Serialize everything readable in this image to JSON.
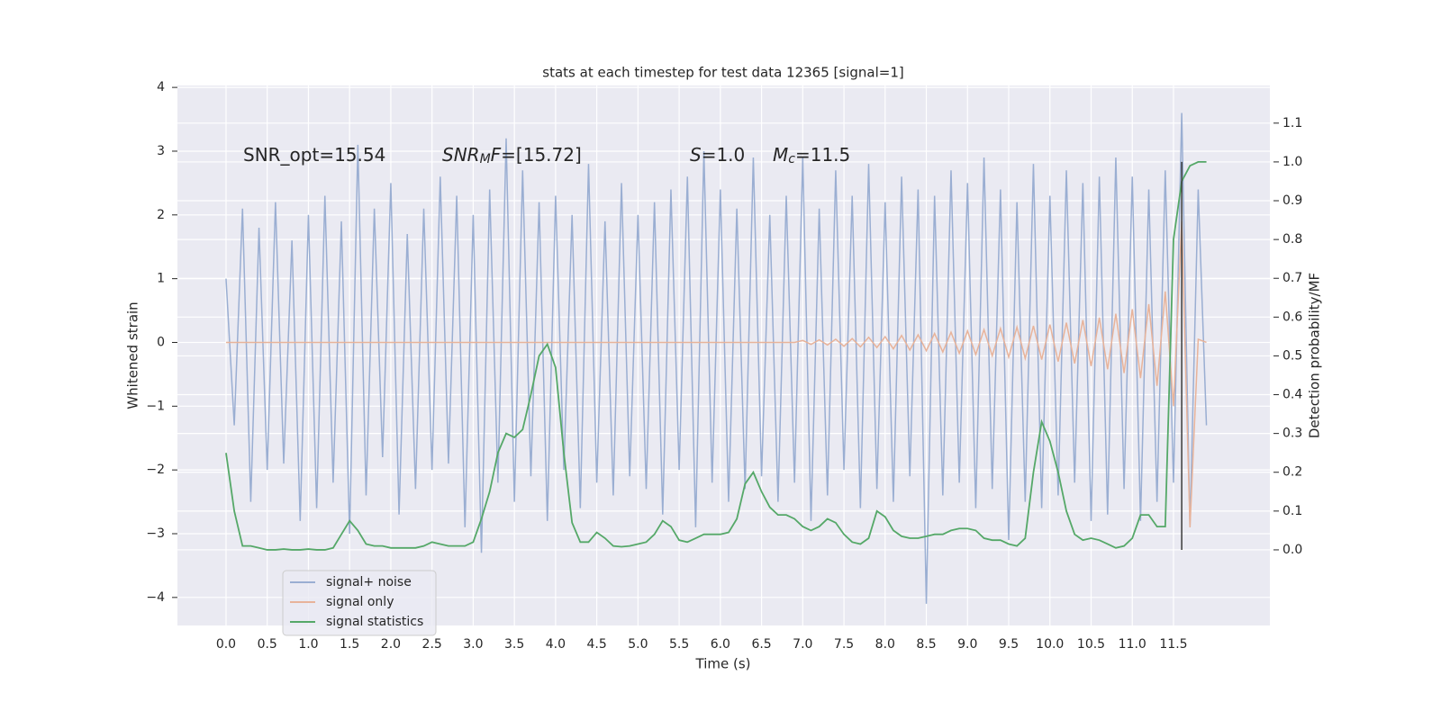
{
  "chart_data": {
    "type": "line",
    "title": "stats at each timestep for test data 12365 [signal=1]",
    "xlabel": "Time (s)",
    "ylabel": "Whitened strain",
    "y2label": "Detection probability/MF",
    "grid": true,
    "legend": "lower left",
    "xlim": [
      -0.59,
      12.67
    ],
    "ylim": [
      -4.44,
      4.03
    ],
    "y2lim": [
      -0.195,
      1.197
    ],
    "xticks": [
      {
        "value": 0,
        "label": "0.0"
      },
      0.5,
      {
        "value": 1,
        "label": "1.0"
      },
      1.5,
      {
        "value": 2,
        "label": "2.0"
      },
      2.5,
      {
        "value": 3,
        "label": "3.0"
      },
      3.5,
      {
        "value": 4,
        "label": "4.0"
      },
      4.5,
      {
        "value": 5,
        "label": "5.0"
      },
      5.5,
      {
        "value": 6,
        "label": "6.0"
      },
      6.5,
      {
        "value": 7,
        "label": "7.0"
      },
      7.5,
      {
        "value": 8,
        "label": "8.0"
      },
      8.5,
      {
        "value": 9,
        "label": "9.0"
      },
      9.5,
      {
        "value": 10,
        "label": "10.0"
      },
      10.5,
      {
        "value": 11,
        "label": "11.0"
      },
      11.5
    ],
    "yticks": [
      {
        "value": -4,
        "label": "−4"
      },
      {
        "value": -3,
        "label": "−3"
      },
      {
        "value": -2,
        "label": "−2"
      },
      {
        "value": -1,
        "label": "−1"
      },
      0,
      1,
      2,
      3,
      4
    ],
    "y2ticks": [
      {
        "value": 0,
        "label": "0.0"
      },
      0.1,
      0.2,
      0.3,
      0.4,
      0.5,
      0.6,
      0.7,
      0.8,
      0.9,
      {
        "value": 1,
        "label": "1.0"
      },
      1.1
    ],
    "x": [
      0.0,
      0.1,
      0.2,
      0.3,
      0.4,
      0.5,
      0.6,
      0.7,
      0.8,
      0.9,
      1.0,
      1.1,
      1.2,
      1.3,
      1.4,
      1.5,
      1.6,
      1.7,
      1.8,
      1.9,
      2.0,
      2.1,
      2.2,
      2.3,
      2.4,
      2.5,
      2.6,
      2.7,
      2.8,
      2.9,
      3.0,
      3.1,
      3.2,
      3.3,
      3.4,
      3.5,
      3.6,
      3.7,
      3.8,
      3.9,
      4.0,
      4.1,
      4.2,
      4.3,
      4.4,
      4.5,
      4.6,
      4.7,
      4.8,
      4.9,
      5.0,
      5.1,
      5.2,
      5.3,
      5.4,
      5.5,
      5.6,
      5.7,
      5.8,
      5.9,
      6.0,
      6.1,
      6.2,
      6.3,
      6.4,
      6.5,
      6.6,
      6.7,
      6.8,
      6.9,
      7.0,
      7.1,
      7.2,
      7.3,
      7.4,
      7.5,
      7.6,
      7.7,
      7.8,
      7.9,
      8.0,
      8.1,
      8.2,
      8.3,
      8.4,
      8.5,
      8.6,
      8.7,
      8.8,
      8.9,
      9.0,
      9.1,
      9.2,
      9.3,
      9.4,
      9.5,
      9.6,
      9.7,
      9.8,
      9.9,
      10.0,
      10.1,
      10.2,
      10.3,
      10.4,
      10.5,
      10.6,
      10.7,
      10.8,
      10.9,
      11.0,
      11.1,
      11.2,
      11.3,
      11.4,
      11.5,
      11.6,
      11.7,
      11.8,
      11.9
    ],
    "series": [
      {
        "name": "signal+ noise",
        "color": "#9aaed2",
        "values": [
          1.0,
          -1.3,
          2.1,
          -2.5,
          1.8,
          -2.0,
          2.2,
          -1.9,
          1.6,
          -2.8,
          2.0,
          -2.6,
          2.3,
          -2.2,
          1.9,
          -3.0,
          3.1,
          -2.4,
          2.1,
          -1.8,
          2.5,
          -2.7,
          1.7,
          -2.3,
          2.1,
          -2.0,
          2.6,
          -1.9,
          2.3,
          -2.9,
          2.0,
          -3.3,
          2.4,
          -2.2,
          3.2,
          -2.5,
          2.7,
          -2.1,
          2.2,
          -2.8,
          2.3,
          -2.0,
          2.0,
          -2.6,
          2.8,
          -2.2,
          1.9,
          -2.4,
          2.5,
          -2.1,
          2.0,
          -2.3,
          2.2,
          -2.7,
          2.4,
          -2.0,
          2.6,
          -2.9,
          3.0,
          -2.2,
          2.4,
          -2.5,
          2.1,
          -2.3,
          2.9,
          -2.1,
          2.0,
          -2.5,
          2.3,
          -2.2,
          2.9,
          -2.8,
          2.1,
          -2.4,
          2.7,
          -2.0,
          2.3,
          -2.6,
          2.8,
          -2.3,
          2.2,
          -2.5,
          2.6,
          -2.1,
          2.4,
          -4.1,
          2.3,
          -2.4,
          2.7,
          -2.2,
          2.5,
          -2.6,
          2.9,
          -2.3,
          2.4,
          -3.1,
          2.2,
          -2.5,
          2.8,
          -2.6,
          2.3,
          -2.4,
          2.7,
          -2.2,
          2.5,
          -2.8,
          2.6,
          -2.7,
          2.9,
          -2.3,
          2.6,
          -2.8,
          2.4,
          -2.5,
          2.7,
          -2.2,
          3.6,
          -2.9,
          2.4,
          -1.3
        ]
      },
      {
        "name": "signal only",
        "color": "#e8b39a",
        "values": [
          0,
          0,
          0,
          0,
          0,
          0,
          0,
          0,
          0,
          0,
          0,
          0,
          0,
          0,
          0,
          0,
          0,
          0,
          0,
          0,
          0,
          0,
          0,
          0,
          0,
          0,
          0,
          0,
          0,
          0,
          0,
          0,
          0,
          0,
          0,
          0,
          0,
          0,
          0,
          0,
          0,
          0,
          0,
          0,
          0,
          0,
          0,
          0,
          0,
          0,
          0,
          0,
          0,
          0,
          0,
          0,
          0,
          0,
          0,
          0,
          0,
          0,
          0,
          0,
          0,
          0,
          0,
          0,
          0,
          0,
          0.03,
          -0.03,
          0.04,
          -0.04,
          0.05,
          -0.06,
          0.06,
          -0.07,
          0.08,
          -0.08,
          0.09,
          -0.1,
          0.11,
          -0.12,
          0.12,
          -0.13,
          0.14,
          -0.15,
          0.16,
          -0.17,
          0.18,
          -0.19,
          0.2,
          -0.21,
          0.22,
          -0.23,
          0.24,
          -0.25,
          0.26,
          -0.27,
          0.28,
          -0.3,
          0.31,
          -0.33,
          0.35,
          -0.37,
          0.39,
          -0.42,
          0.45,
          -0.48,
          0.52,
          -0.56,
          0.6,
          -0.68,
          0.8,
          -1.0,
          1.9,
          -2.9,
          0.05,
          0.0
        ]
      },
      {
        "name": "signal statistics",
        "color": "#55a868",
        "axis": "y2",
        "values": [
          0.25,
          0.1,
          0.01,
          0.01,
          0.005,
          0.0,
          0.0,
          0.002,
          0.0,
          0.0,
          0.002,
          0.0,
          0.0,
          0.005,
          0.04,
          0.075,
          0.05,
          0.015,
          0.01,
          0.01,
          0.005,
          0.005,
          0.005,
          0.005,
          0.01,
          0.02,
          0.015,
          0.01,
          0.01,
          0.01,
          0.02,
          0.08,
          0.15,
          0.25,
          0.3,
          0.29,
          0.31,
          0.4,
          0.5,
          0.53,
          0.47,
          0.25,
          0.07,
          0.02,
          0.02,
          0.045,
          0.03,
          0.01,
          0.008,
          0.01,
          0.015,
          0.02,
          0.04,
          0.075,
          0.06,
          0.025,
          0.02,
          0.03,
          0.04,
          0.04,
          0.04,
          0.045,
          0.08,
          0.17,
          0.2,
          0.15,
          0.11,
          0.09,
          0.09,
          0.08,
          0.06,
          0.05,
          0.06,
          0.08,
          0.07,
          0.04,
          0.02,
          0.015,
          0.03,
          0.1,
          0.085,
          0.05,
          0.035,
          0.03,
          0.03,
          0.035,
          0.04,
          0.04,
          0.05,
          0.055,
          0.055,
          0.05,
          0.03,
          0.025,
          0.025,
          0.015,
          0.01,
          0.03,
          0.2,
          0.33,
          0.28,
          0.2,
          0.1,
          0.04,
          0.025,
          0.03,
          0.025,
          0.015,
          0.005,
          0.01,
          0.03,
          0.09,
          0.09,
          0.06,
          0.06,
          0.8,
          0.95,
          0.99,
          1.0,
          1.0
        ]
      }
    ],
    "vline": {
      "x": 11.6,
      "y2": [
        0.0,
        1.0
      ],
      "color": "#3a3a3a"
    },
    "annotations": [
      {
        "parts": [
          {
            "text": "SNR_opt=15.54"
          }
        ]
      },
      {
        "parts": [
          {
            "text": "SNR",
            "style": "italic"
          },
          {
            "text": "M",
            "style": "italic-sub"
          },
          {
            "text": "F",
            "style": "italic"
          },
          {
            "text": "=[15.72]"
          }
        ]
      },
      {
        "parts": [
          {
            "text": "S",
            "style": "italic"
          },
          {
            "text": "=1.0"
          }
        ]
      },
      {
        "parts": [
          {
            "text": "M",
            "style": "italic"
          },
          {
            "text": "c",
            "style": "italic-sub"
          },
          {
            "text": "=11.5"
          }
        ]
      }
    ]
  }
}
